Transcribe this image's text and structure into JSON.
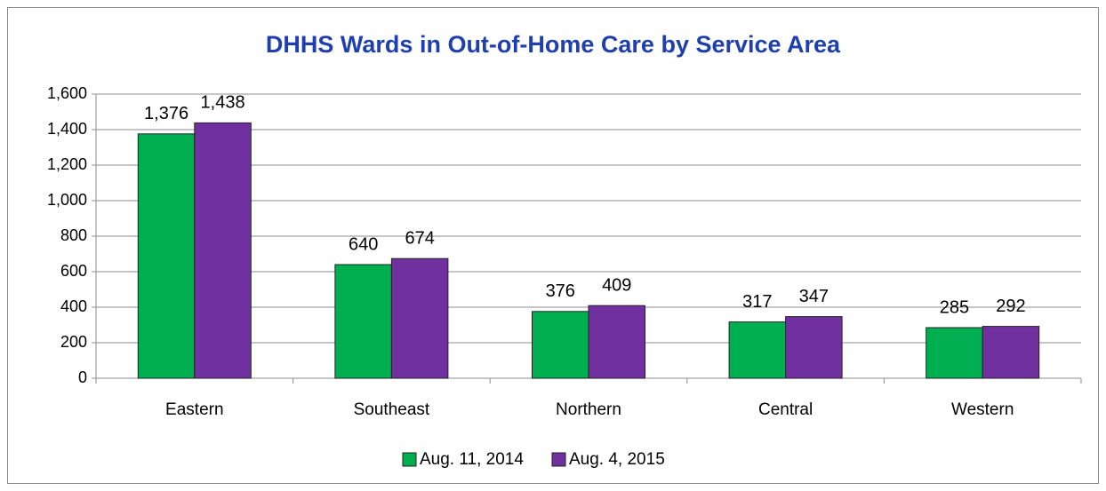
{
  "chart_data": {
    "type": "bar",
    "title": "DHHS Wards in Out-of-Home Care by Service Area",
    "categories": [
      "Eastern",
      "Southeast",
      "Northern",
      "Central",
      "Western"
    ],
    "series": [
      {
        "name": "Aug. 11, 2014",
        "color": "#00b050",
        "values": [
          1376,
          640,
          376,
          317,
          285
        ],
        "value_labels": [
          "1,376",
          "640",
          "376",
          "317",
          "285"
        ]
      },
      {
        "name": "Aug. 4, 2015",
        "color": "#7030a0",
        "values": [
          1438,
          674,
          409,
          347,
          292
        ],
        "value_labels": [
          "1,438",
          "674",
          "409",
          "347",
          "292"
        ]
      }
    ],
    "ylim": [
      0,
      1600
    ],
    "yticks": [
      0,
      200,
      400,
      600,
      800,
      {
        "value": 1000,
        "label": "1,000"
      },
      {
        "value": 1200,
        "label": "1,200"
      },
      {
        "value": 1400,
        "label": "1,400"
      },
      {
        "value": 1600,
        "label": "1,600"
      }
    ],
    "grid": true,
    "legend": "bottom"
  }
}
